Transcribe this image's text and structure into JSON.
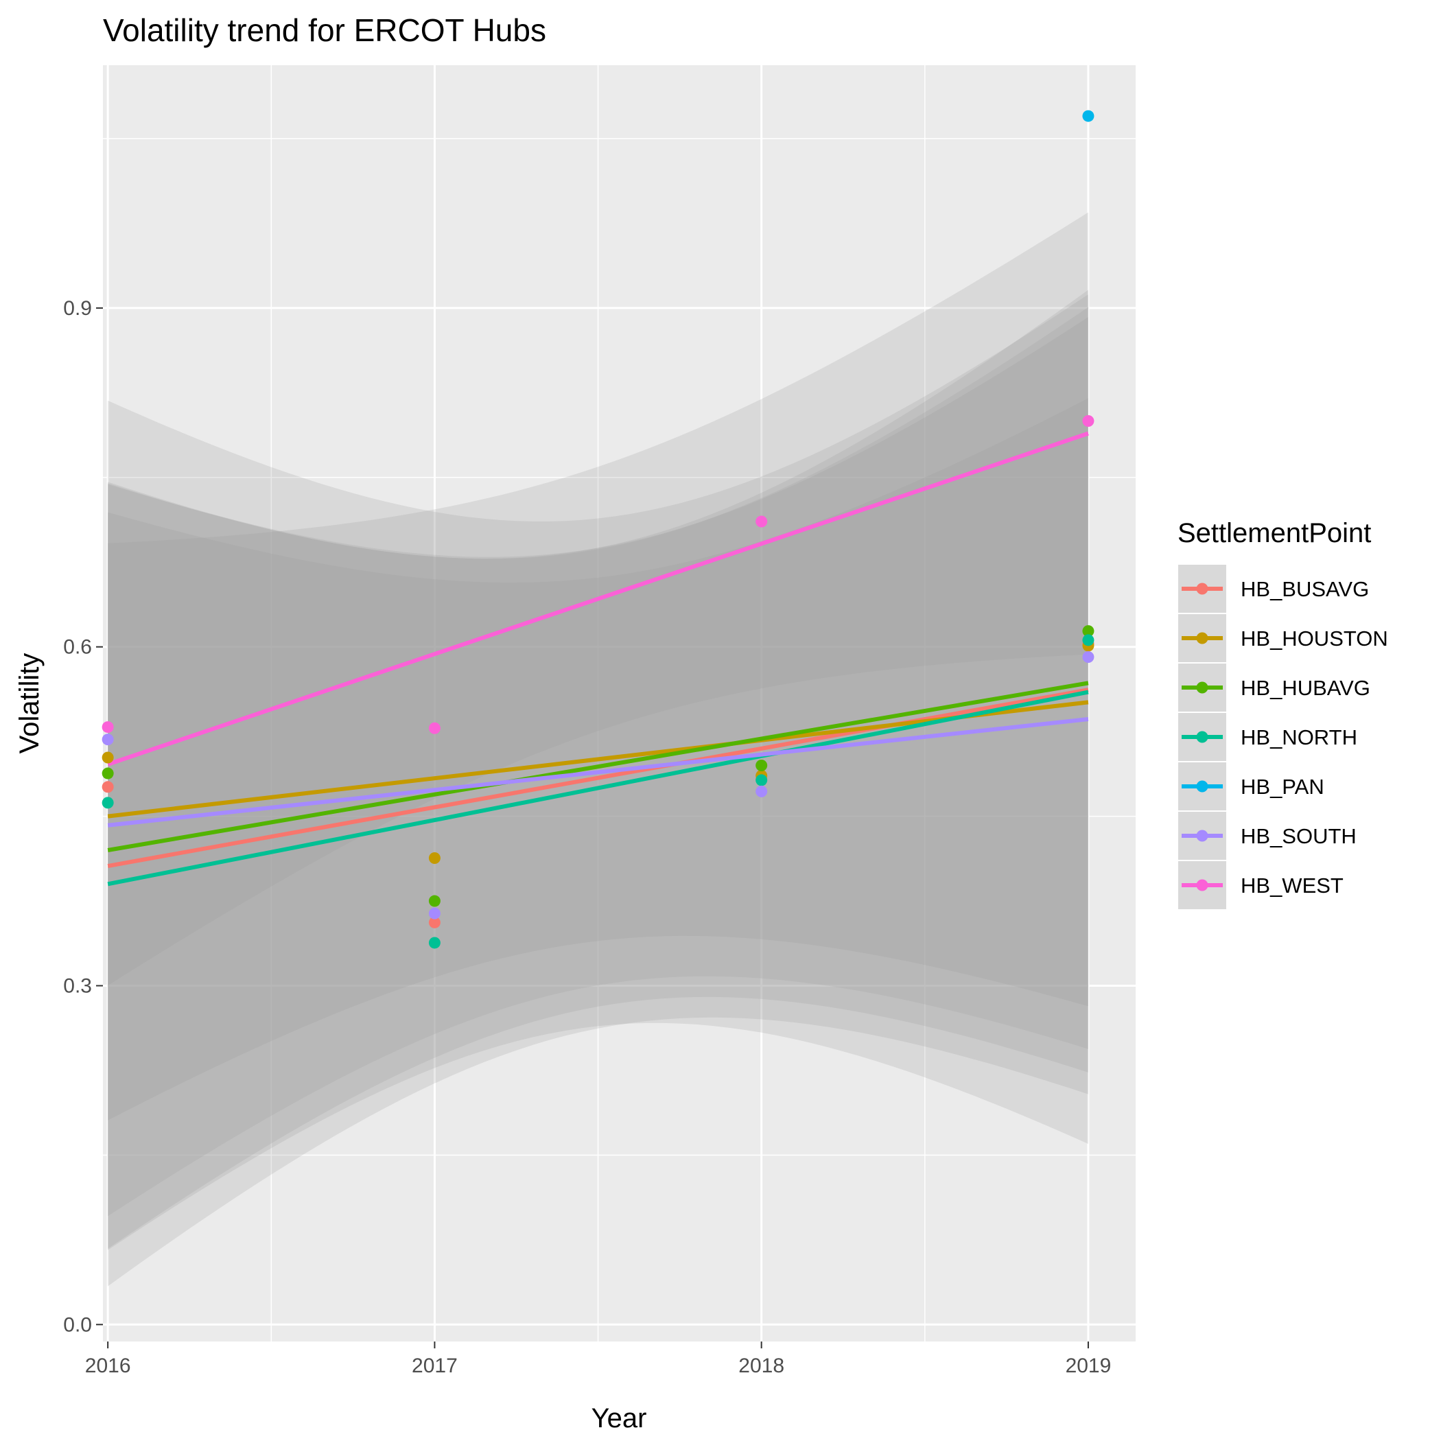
{
  "chart_data": {
    "type": "scatter",
    "title": "Volatility trend for ERCOT Hubs",
    "xlabel": "Year",
    "ylabel": "Volatility",
    "x": [
      2016,
      2017,
      2018,
      2019
    ],
    "x_ticks": [
      "2016",
      "2017",
      "2018",
      "2019"
    ],
    "y_ticks": [
      "0.0",
      "0.3",
      "0.6",
      "0.9"
    ],
    "xlim": [
      2015.985,
      2019.145
    ],
    "ylim": [
      -0.015,
      1.115
    ],
    "grid": true,
    "legend": {
      "title": "SettlementPoint",
      "position": "right"
    },
    "series": [
      {
        "name": "HB_BUSAVG",
        "color": "#F8766D",
        "values": [
          0.476,
          0.356,
          0.483,
          0.603
        ],
        "fit": [
          0.406,
          0.562
        ]
      },
      {
        "name": "HB_HOUSTON",
        "color": "#C49A00",
        "values": [
          0.502,
          0.413,
          0.486,
          0.601
        ],
        "fit": [
          0.45,
          0.551
        ]
      },
      {
        "name": "HB_HUBAVG",
        "color": "#53B400",
        "values": [
          0.488,
          0.375,
          0.495,
          0.614
        ],
        "fit": [
          0.42,
          0.568
        ]
      },
      {
        "name": "HB_NORTH",
        "color": "#00C094",
        "values": [
          0.462,
          0.338,
          0.482,
          0.606
        ],
        "fit": [
          0.39,
          0.56
        ]
      },
      {
        "name": "HB_PAN",
        "color": "#00B6EB",
        "values": [
          null,
          null,
          null,
          1.07
        ],
        "fit": null
      },
      {
        "name": "HB_SOUTH",
        "color": "#A58AFF",
        "values": [
          0.518,
          0.364,
          0.472,
          0.591
        ],
        "fit": [
          0.442,
          0.536
        ]
      },
      {
        "name": "HB_WEST",
        "color": "#FB61D7",
        "values": [
          0.529,
          0.528,
          0.711,
          0.8
        ],
        "fit": [
          0.496,
          0.789
        ]
      }
    ]
  }
}
